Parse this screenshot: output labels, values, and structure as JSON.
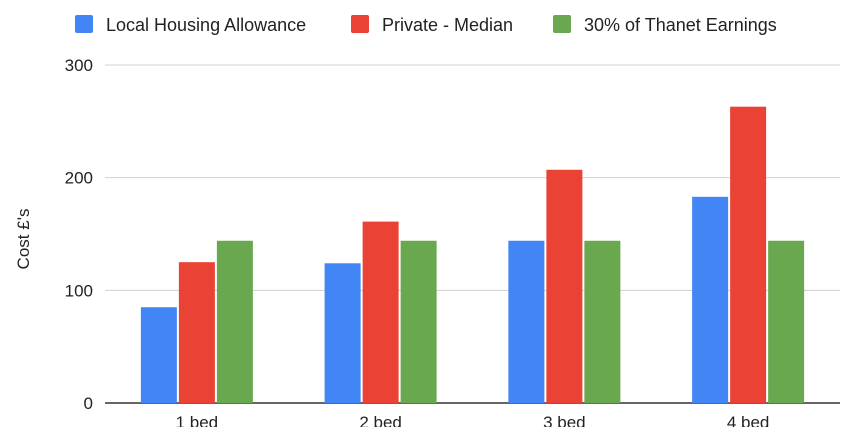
{
  "chart_data": {
    "type": "bar",
    "title": "",
    "xlabel": "",
    "ylabel": "Cost £'s",
    "categories": [
      "1 bed",
      "2 bed",
      "3 bed",
      "4 bed"
    ],
    "series": [
      {
        "name": "Local Housing Allowance",
        "color": "#4285f4",
        "values": [
          85,
          124,
          144,
          183
        ]
      },
      {
        "name": "Private - Median",
        "color": "#ea4335",
        "values": [
          125,
          161,
          207,
          263
        ]
      },
      {
        "name": "30% of Thanet Earnings",
        "color": "#6aa84f",
        "values": [
          144,
          144,
          144,
          144
        ]
      }
    ],
    "ylim": [
      0,
      300
    ],
    "yticks": [
      0,
      100,
      200,
      300
    ],
    "grid": true,
    "legend_position": "top"
  }
}
